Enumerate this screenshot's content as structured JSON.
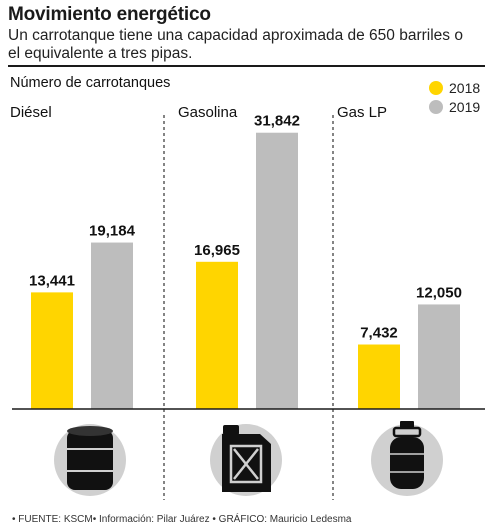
{
  "title": "Movimiento energético",
  "subtitle": "Un carrotanque tiene una capacidad aproximada de 650 barriles o el equivalente a tres pipas.",
  "footer": "• FUENTE: KSCM• Información: Pilar Juárez • GRÁFICO: Mauricio Ledesma",
  "chart_data": {
    "type": "bar",
    "ylabel": "Número de carrotanques",
    "categories": [
      "Diésel",
      "Gasolina",
      "Gas LP"
    ],
    "series": [
      {
        "name": "2018",
        "color": "#FFD500",
        "values": [
          13441,
          16965,
          7432
        ]
      },
      {
        "name": "2019",
        "color": "#BDBDBD",
        "values": [
          19184,
          31842,
          12050
        ]
      }
    ],
    "value_labels": [
      [
        "13,441",
        "19,184"
      ],
      [
        "16,965",
        "31,842"
      ],
      [
        "7,432",
        "12,050"
      ]
    ],
    "ylim": [
      0,
      34000
    ],
    "legend_position": "top-right",
    "icons": [
      "barrel-icon",
      "jerrycan-icon",
      "gas-cylinder-icon"
    ]
  }
}
